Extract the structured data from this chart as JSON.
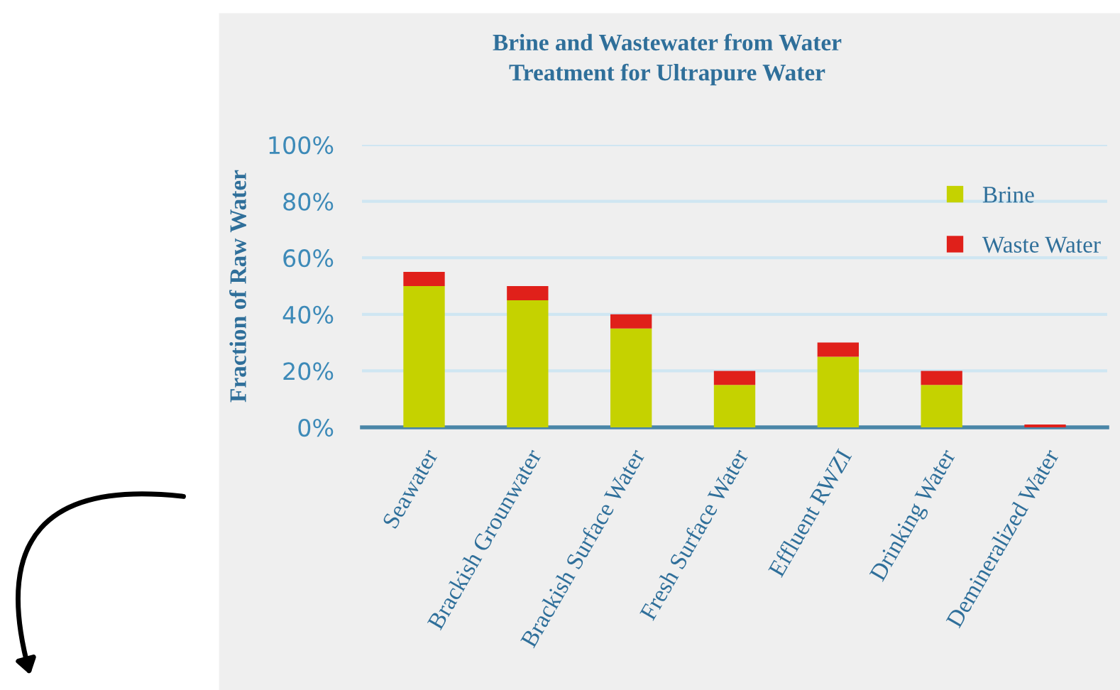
{
  "chart_data": {
    "type": "bar",
    "title": "Brine and Wastewater from Water\nTreatment for Ultrapure Water",
    "ylabel": "Fraction of Raw Water",
    "categories": [
      "Seawater",
      "Brackish Grounwater",
      "Brackish Surface Water",
      "Fresh Surface Water",
      "Effluent RWZI",
      "Drinking Water",
      "Demineralized Water"
    ],
    "stacked": true,
    "series": [
      {
        "name": "Brine",
        "color": "#c5d200",
        "values": [
          50,
          45,
          35,
          15,
          25,
          15,
          0
        ]
      },
      {
        "name": "Waste Water",
        "color": "#e0201a",
        "values": [
          5,
          5,
          5,
          5,
          5,
          5,
          1
        ]
      }
    ],
    "ylim": [
      0,
      100
    ],
    "yticks": [
      {
        "value": 0,
        "label": "0%"
      },
      {
        "value": 20,
        "label": "20%"
      },
      {
        "value": 40,
        "label": "40%"
      },
      {
        "value": 60,
        "label": "60%"
      },
      {
        "value": 80,
        "label": "80%"
      },
      {
        "value": 100,
        "label": "100%"
      }
    ],
    "grid": "y",
    "legend": "top right"
  }
}
